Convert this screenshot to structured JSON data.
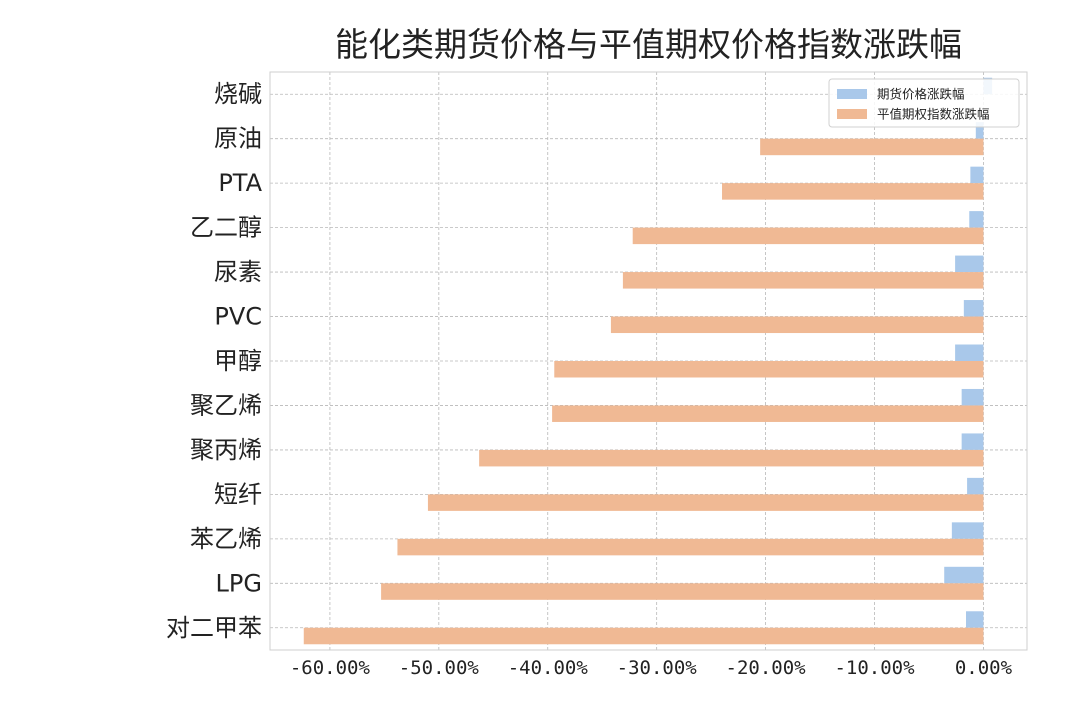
{
  "chart_data": {
    "type": "bar",
    "orientation": "horizontal",
    "title": "能化类期货价格与平值期权价格指数涨跌幅",
    "xlabel": "",
    "ylabel": "",
    "categories": [
      "烧碱",
      "原油",
      "PTA",
      "乙二醇",
      "尿素",
      "PVC",
      "甲醇",
      "聚乙烯",
      "聚丙烯",
      "短纤",
      "苯乙烯",
      "LPG",
      "对二甲苯"
    ],
    "series": [
      {
        "name": "期货价格涨跌幅",
        "color": "#a9c8ea",
        "values": [
          0.8,
          -0.7,
          -1.2,
          -1.3,
          -2.6,
          -1.8,
          -2.6,
          -2.0,
          -2.0,
          -1.5,
          -2.9,
          -3.6,
          -1.6
        ]
      },
      {
        "name": "平值期权指数涨跌幅",
        "color": "#f0b994",
        "values": [
          0.0,
          -20.5,
          -24.0,
          -32.2,
          -33.1,
          -34.2,
          -39.4,
          -39.6,
          -46.3,
          -51.0,
          -53.8,
          -55.3,
          -62.4
        ]
      }
    ],
    "xlim": [
      -65.5,
      4.0
    ],
    "xticks": [
      -60,
      -50,
      -40,
      -30,
      -20,
      -10,
      0
    ],
    "xtick_labels": [
      "-60.00%",
      "-50.00%",
      "-40.00%",
      "-30.00%",
      "-20.00%",
      "-10.00%",
      "0.00%"
    ],
    "grid": true,
    "legend_position": "top-right"
  }
}
